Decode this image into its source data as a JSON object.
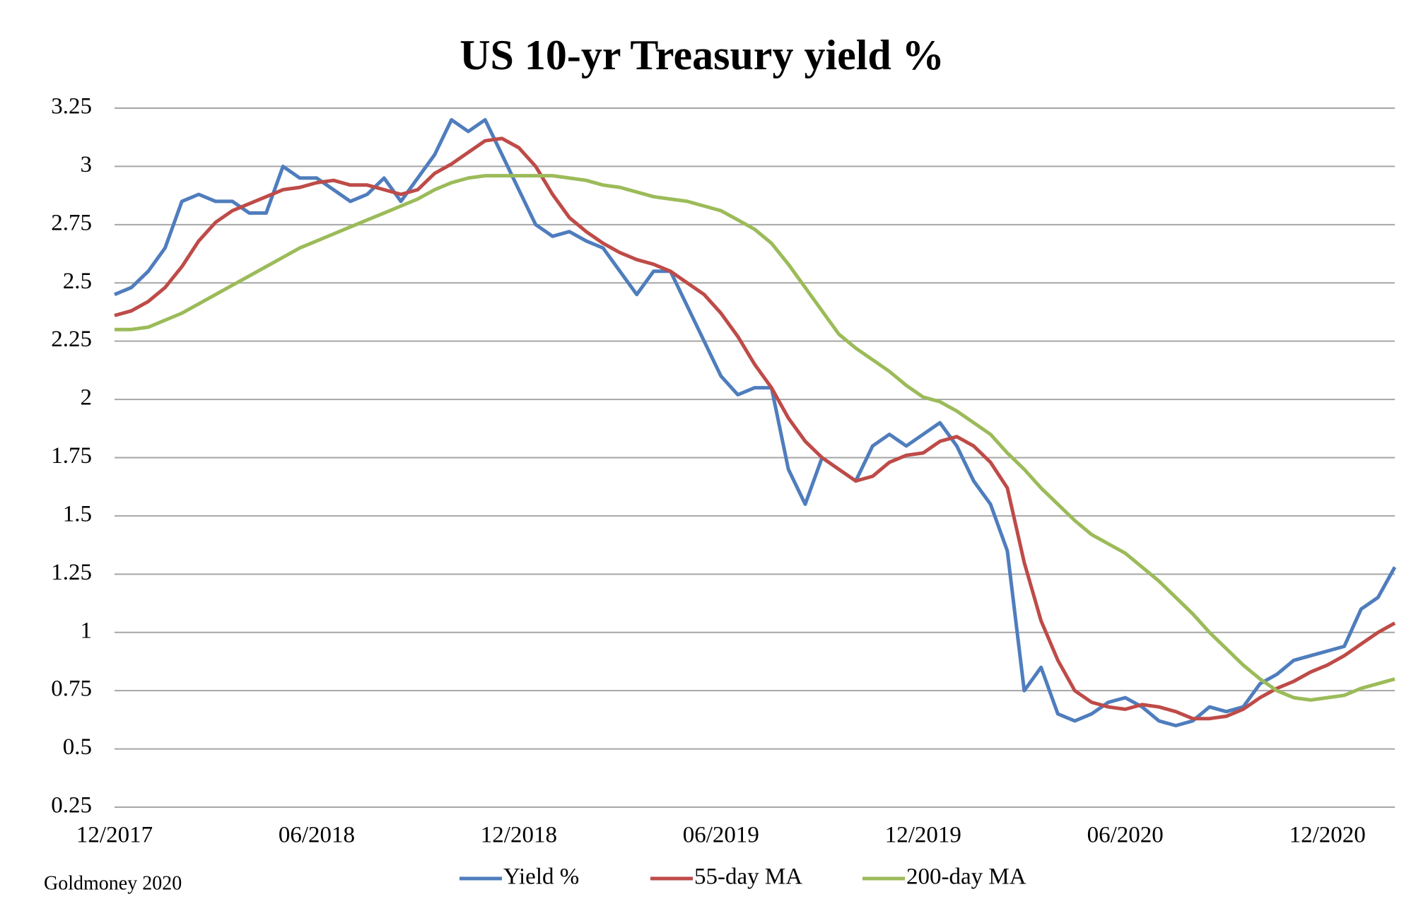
{
  "chart_data": {
    "type": "line",
    "title": "US 10-yr Treasury yield %",
    "source": "Goldmoney 2020",
    "categories": [
      "12/2017",
      null,
      null,
      null,
      null,
      null,
      null,
      null,
      null,
      null,
      null,
      null,
      "06/2018",
      null,
      null,
      null,
      null,
      null,
      null,
      null,
      null,
      null,
      null,
      null,
      "12/2018",
      null,
      null,
      null,
      null,
      null,
      null,
      null,
      null,
      null,
      null,
      null,
      "06/2019",
      null,
      null,
      null,
      null,
      null,
      null,
      null,
      null,
      null,
      null,
      null,
      "12/2019",
      null,
      null,
      null,
      null,
      null,
      null,
      null,
      null,
      null,
      null,
      null,
      "06/2020",
      null,
      null,
      null,
      null,
      null,
      null,
      null,
      null,
      null,
      null,
      null,
      "12/2020",
      null,
      null,
      null,
      null
    ],
    "series": [
      {
        "name": "Yield %",
        "color": "#4f7dbd",
        "values": [
          2.45,
          2.48,
          2.55,
          2.65,
          2.85,
          2.88,
          2.85,
          2.85,
          2.8,
          2.8,
          3.0,
          2.95,
          2.95,
          2.9,
          2.85,
          2.88,
          2.95,
          2.85,
          2.95,
          3.05,
          3.2,
          3.15,
          3.2,
          3.05,
          2.9,
          2.75,
          2.7,
          2.72,
          2.68,
          2.65,
          2.55,
          2.45,
          2.55,
          2.55,
          2.4,
          2.25,
          2.1,
          2.02,
          2.05,
          2.05,
          1.7,
          1.55,
          1.75,
          1.7,
          1.65,
          1.8,
          1.85,
          1.8,
          1.85,
          1.9,
          1.8,
          1.65,
          1.55,
          1.35,
          0.75,
          0.85,
          0.65,
          0.62,
          0.65,
          0.7,
          0.72,
          0.68,
          0.62,
          0.6,
          0.62,
          0.68,
          0.66,
          0.68,
          0.78,
          0.82,
          0.88,
          0.9,
          0.92,
          0.94,
          1.1,
          1.15,
          1.28
        ]
      },
      {
        "name": "55-day MA",
        "color": "#be4b48",
        "values": [
          2.36,
          2.38,
          2.42,
          2.48,
          2.57,
          2.68,
          2.76,
          2.81,
          2.84,
          2.87,
          2.9,
          2.91,
          2.93,
          2.94,
          2.92,
          2.92,
          2.9,
          2.88,
          2.9,
          2.97,
          3.01,
          3.06,
          3.11,
          3.12,
          3.08,
          3.0,
          2.88,
          2.78,
          2.72,
          2.67,
          2.63,
          2.6,
          2.58,
          2.55,
          2.5,
          2.45,
          2.37,
          2.27,
          2.15,
          2.05,
          1.92,
          1.82,
          1.75,
          1.7,
          1.65,
          1.67,
          1.73,
          1.76,
          1.77,
          1.82,
          1.84,
          1.8,
          1.73,
          1.62,
          1.3,
          1.05,
          0.88,
          0.75,
          0.7,
          0.68,
          0.67,
          0.69,
          0.68,
          0.66,
          0.63,
          0.63,
          0.64,
          0.67,
          0.72,
          0.76,
          0.79,
          0.83,
          0.86,
          0.9,
          0.95,
          1.0,
          1.04
        ]
      },
      {
        "name": "200-day MA",
        "color": "#9bbb59",
        "values": [
          2.3,
          2.3,
          2.31,
          2.34,
          2.37,
          2.41,
          2.45,
          2.49,
          2.53,
          2.57,
          2.61,
          2.65,
          2.68,
          2.71,
          2.74,
          2.77,
          2.8,
          2.83,
          2.86,
          2.9,
          2.93,
          2.95,
          2.96,
          2.96,
          2.96,
          2.96,
          2.96,
          2.95,
          2.94,
          2.92,
          2.91,
          2.89,
          2.87,
          2.86,
          2.85,
          2.83,
          2.81,
          2.77,
          2.73,
          2.67,
          2.58,
          2.48,
          2.38,
          2.28,
          2.22,
          2.17,
          2.12,
          2.06,
          2.01,
          1.99,
          1.95,
          1.9,
          1.85,
          1.77,
          1.7,
          1.62,
          1.55,
          1.48,
          1.42,
          1.38,
          1.34,
          1.28,
          1.22,
          1.15,
          1.08,
          1.0,
          0.93,
          0.86,
          0.8,
          0.75,
          0.72,
          0.71,
          0.72,
          0.73,
          0.76,
          0.78,
          0.8
        ]
      }
    ],
    "ylim": [
      0.25,
      3.25
    ],
    "yticks": [
      0.25,
      0.5,
      0.75,
      1,
      1.25,
      1.5,
      1.75,
      2,
      2.25,
      2.5,
      2.75,
      3,
      3.25
    ],
    "grid": true,
    "legend": "bottom"
  }
}
